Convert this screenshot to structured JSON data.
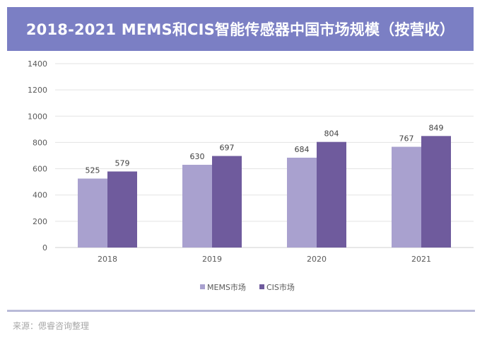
{
  "title": "2018-2021 MEMS和CIS智能传感器中国市场规模（按营收）",
  "source": "来源：偲睿咨询整理",
  "colors": {
    "header_bg": "#7b7fc4",
    "mems": "#a9a1cf",
    "cis": "#6f5b9d"
  },
  "chart_data": {
    "type": "bar",
    "categories": [
      "2018",
      "2019",
      "2020",
      "2021"
    ],
    "series": [
      {
        "name": "MEMS市场",
        "values": [
          525,
          630,
          684,
          767
        ]
      },
      {
        "name": "CIS市场",
        "values": [
          579,
          697,
          804,
          849
        ]
      }
    ],
    "ylim": [
      0,
      1400
    ],
    "yticks": [
      0,
      200,
      400,
      600,
      800,
      1000,
      1200,
      1400
    ],
    "grid": true,
    "legend": "bottom"
  }
}
